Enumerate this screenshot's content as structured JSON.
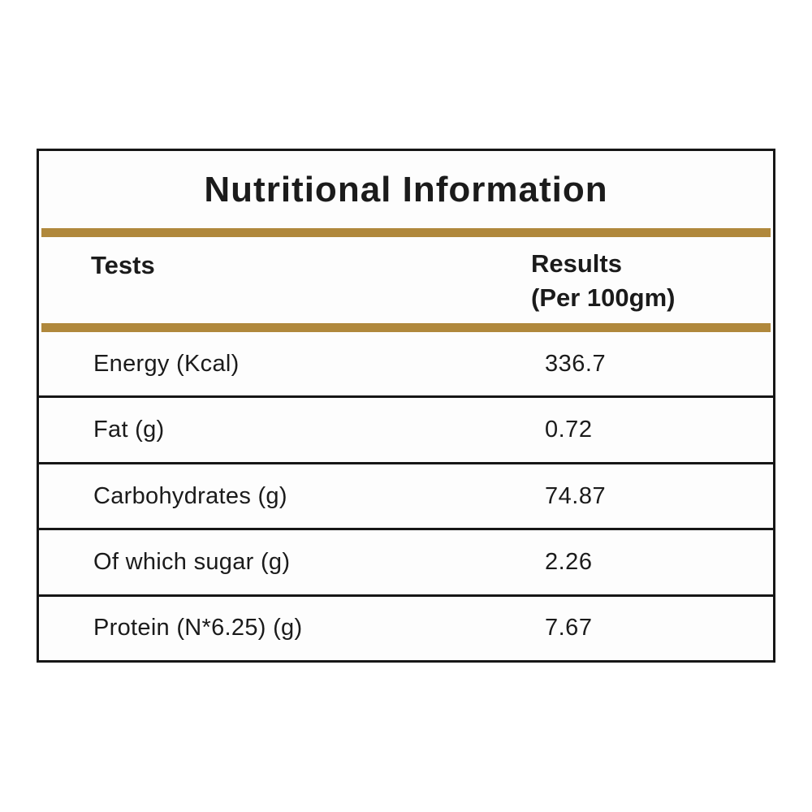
{
  "accent_color": "#B0883C",
  "border_color": "#161616",
  "title": "Nutritional Information",
  "header": {
    "tests_label": "Tests",
    "results_label_line1": "Results",
    "results_label_line2": "(Per 100gm)"
  },
  "rows": [
    {
      "label": "Energy (Kcal)",
      "value": "336.7"
    },
    {
      "label": "Fat (g)",
      "value": "0.72"
    },
    {
      "label": "Carbohydrates (g)",
      "value": "74.87"
    },
    {
      "label": "Of which sugar (g)",
      "value": "2.26"
    },
    {
      "label": "Protein (N*6.25) (g)",
      "value": "7.67"
    }
  ]
}
